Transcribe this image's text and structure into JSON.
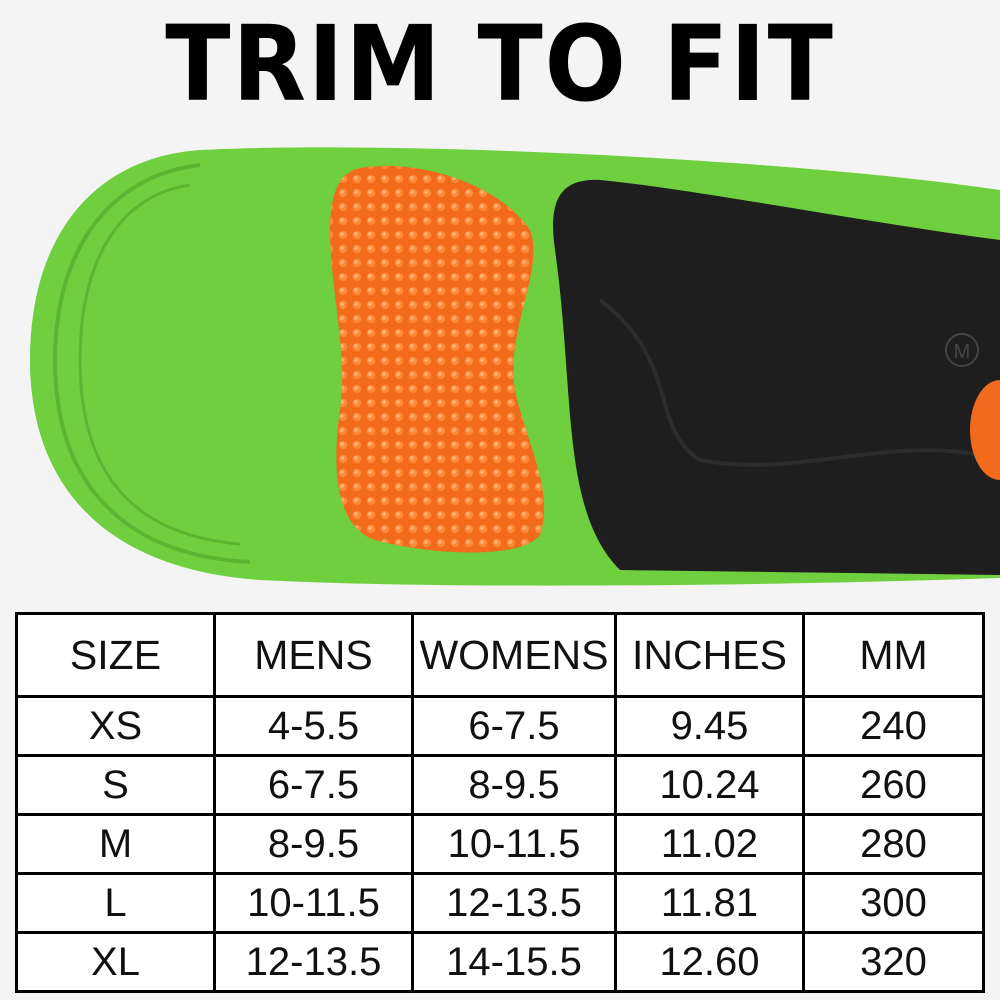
{
  "title": "TRIM TO FIT",
  "insole": {
    "size_mark": "M",
    "colors": {
      "foam": "#6fcf3f",
      "heel_pad": "#f26a1b",
      "arch": "#1e1e1e"
    }
  },
  "table": {
    "headers": [
      "SIZE",
      "MENS",
      "WOMENS",
      "INCHES",
      "MM"
    ],
    "rows": [
      [
        "XS",
        "4-5.5",
        "6-7.5",
        "9.45",
        "240"
      ],
      [
        "S",
        "6-7.5",
        "8-9.5",
        "10.24",
        "260"
      ],
      [
        "M",
        "8-9.5",
        "10-11.5",
        "11.02",
        "280"
      ],
      [
        "L",
        "10-11.5",
        "12-13.5",
        "11.81",
        "300"
      ],
      [
        "XL",
        "12-13.5",
        "14-15.5",
        "12.60",
        "320"
      ]
    ]
  }
}
